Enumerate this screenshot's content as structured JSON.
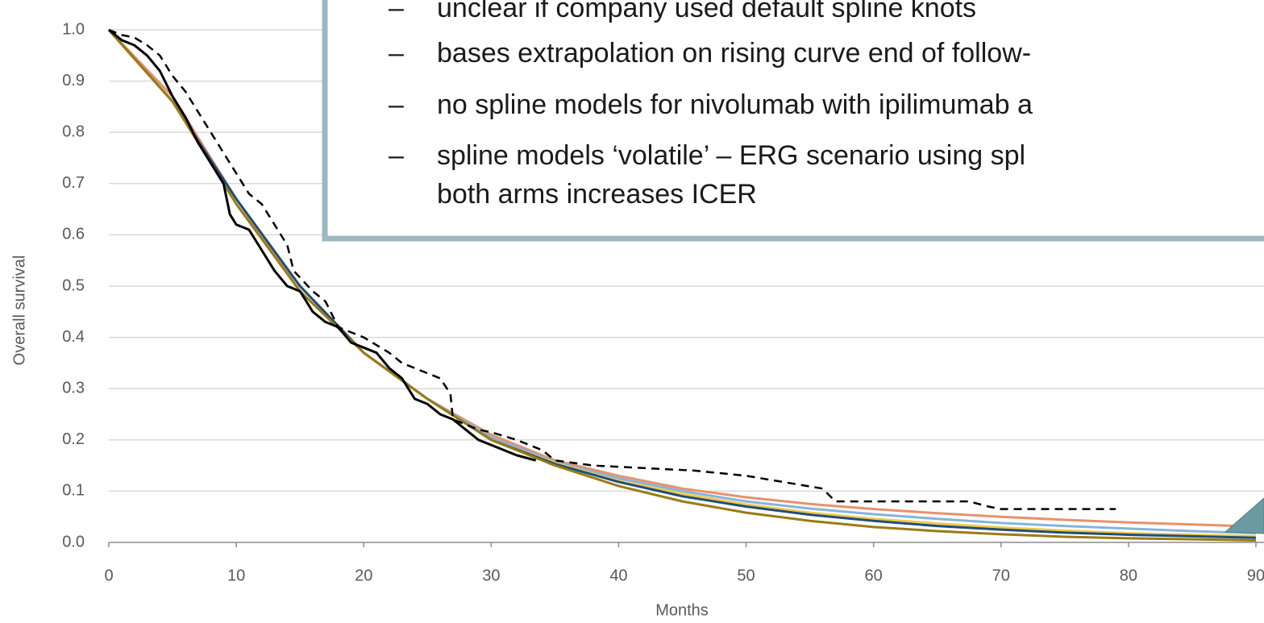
{
  "chart_data": {
    "type": "line",
    "x_label": "Months",
    "y_label": "Overall survival",
    "xlim": [
      0,
      90
    ],
    "xticks": [
      0,
      10,
      20,
      30,
      40,
      50,
      60,
      70,
      80,
      90
    ],
    "ylim": [
      0,
      1
    ],
    "yticks": [
      {
        "value": 0,
        "label": "0.0"
      },
      0.1,
      0.2,
      0.3,
      0.4,
      0.5,
      0.6,
      0.7,
      0.8,
      0.9,
      {
        "value": 1,
        "label": "1.0"
      }
    ],
    "grid": true,
    "series": [
      {
        "color": "#e8916b",
        "x": [
          0,
          5,
          10,
          15,
          20,
          25,
          30,
          35,
          40,
          45,
          50,
          55,
          60,
          65,
          70,
          75,
          80,
          85,
          90
        ],
        "values": [
          1,
          0.87,
          0.67,
          0.49,
          0.37,
          0.28,
          0.21,
          0.16,
          0.13,
          0.105,
          0.088,
          0.075,
          0.065,
          0.057,
          0.05,
          0.044,
          0.039,
          0.035,
          0.031
        ]
      },
      {
        "color": "#86b3da",
        "x": [
          0,
          5,
          10,
          15,
          20,
          25,
          30,
          35,
          40,
          45,
          50,
          55,
          60,
          65,
          70,
          75,
          80,
          85,
          90
        ],
        "values": [
          1,
          0.86,
          0.67,
          0.5,
          0.37,
          0.28,
          0.205,
          0.157,
          0.125,
          0.1,
          0.08,
          0.066,
          0.055,
          0.046,
          0.038,
          0.032,
          0.027,
          0.022,
          0.018
        ]
      },
      {
        "color": "#f2c94c",
        "x": [
          0,
          5,
          10,
          15,
          20,
          25,
          30,
          35,
          40,
          45,
          50,
          55,
          60,
          65,
          70,
          75,
          80,
          85,
          90
        ],
        "values": [
          1,
          0.86,
          0.67,
          0.5,
          0.37,
          0.28,
          0.2,
          0.155,
          0.12,
          0.095,
          0.074,
          0.058,
          0.046,
          0.037,
          0.029,
          0.023,
          0.018,
          0.015,
          0.012
        ]
      },
      {
        "color": "#1f4e79",
        "x": [
          0,
          5,
          10,
          15,
          20,
          25,
          30,
          35,
          40,
          45,
          50,
          55,
          60,
          65,
          70,
          75,
          80,
          85,
          90
        ],
        "values": [
          1,
          0.86,
          0.67,
          0.5,
          0.37,
          0.28,
          0.2,
          0.153,
          0.118,
          0.09,
          0.07,
          0.054,
          0.042,
          0.032,
          0.025,
          0.019,
          0.015,
          0.012,
          0.009
        ]
      },
      {
        "color": "#9a7b14",
        "x": [
          0,
          5,
          10,
          15,
          20,
          25,
          30,
          35,
          40,
          45,
          50,
          55,
          60,
          65,
          70,
          75,
          80,
          85,
          90
        ],
        "values": [
          1,
          0.86,
          0.66,
          0.49,
          0.37,
          0.28,
          0.2,
          0.15,
          0.11,
          0.08,
          0.058,
          0.042,
          0.03,
          0.022,
          0.016,
          0.011,
          0.008,
          0.006,
          0.004
        ]
      },
      {
        "color": "#000000",
        "dashed": true,
        "x": [
          0,
          1,
          2,
          3,
          4,
          5,
          6,
          7,
          8,
          9,
          10,
          11,
          12,
          13,
          14,
          14.5,
          16,
          17,
          18,
          19,
          20,
          22,
          23,
          24,
          26,
          26.8,
          27,
          28,
          29,
          30,
          32,
          34,
          35,
          38,
          46,
          50,
          56,
          57,
          67.5,
          69,
          70,
          79
        ],
        "values": [
          1,
          0.99,
          0.985,
          0.97,
          0.95,
          0.91,
          0.88,
          0.84,
          0.8,
          0.76,
          0.72,
          0.68,
          0.66,
          0.62,
          0.58,
          0.53,
          0.49,
          0.47,
          0.42,
          0.41,
          0.4,
          0.37,
          0.35,
          0.34,
          0.32,
          0.29,
          0.24,
          0.23,
          0.22,
          0.215,
          0.2,
          0.18,
          0.16,
          0.15,
          0.14,
          0.13,
          0.105,
          0.08,
          0.08,
          0.07,
          0.065,
          0.065
        ]
      },
      {
        "color": "#000000",
        "x": [
          0,
          1,
          2,
          3,
          4,
          5,
          6,
          7,
          8,
          9,
          9.5,
          10,
          11,
          12,
          13,
          14,
          15,
          16,
          17,
          18,
          19,
          20,
          21,
          22,
          23,
          24,
          25,
          26,
          27,
          28,
          29,
          30,
          31,
          32,
          33.5
        ],
        "values": [
          1,
          0.98,
          0.97,
          0.95,
          0.92,
          0.87,
          0.83,
          0.78,
          0.74,
          0.7,
          0.64,
          0.62,
          0.61,
          0.57,
          0.53,
          0.5,
          0.49,
          0.45,
          0.43,
          0.42,
          0.39,
          0.38,
          0.37,
          0.34,
          0.32,
          0.28,
          0.27,
          0.25,
          0.24,
          0.22,
          0.2,
          0.19,
          0.18,
          0.17,
          0.16
        ]
      }
    ],
    "annotation_lines": [
      {
        "bullet": "–",
        "text": "unclear if company used default spline knots"
      },
      {
        "bullet": "–",
        "text": "bases extrapolation on rising curve end of follow-"
      },
      {
        "bullet": "–",
        "text": "no spline models for nivolumab with ipilimumab a"
      },
      {
        "bullet": "–",
        "text": "spline models ‘volatile’ – ERG scenario using spl"
      },
      {
        "text": "both arms increases ICER"
      }
    ]
  }
}
